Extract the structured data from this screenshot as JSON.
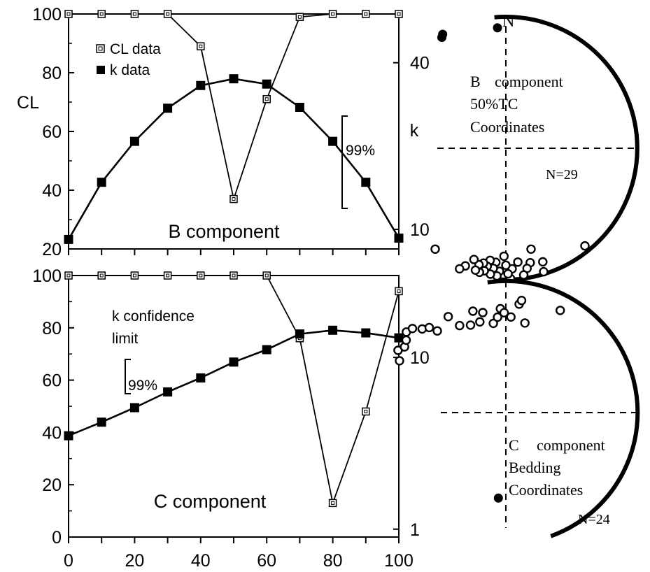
{
  "chart_data": [
    {
      "type": "line",
      "title": "B component",
      "ylabel": "CL",
      "y2label": "k",
      "x": [
        0,
        10,
        20,
        30,
        40,
        50,
        60,
        70,
        80,
        90,
        100
      ],
      "xlim": [
        0,
        100
      ],
      "ylim": [
        20,
        100
      ],
      "y2lim": [
        8.5,
        60
      ],
      "y2scale": "log",
      "yticks": [
        "20",
        "40",
        "60",
        "80",
        "100"
      ],
      "y2ticks": [
        {
          "value": 10,
          "label": "10"
        },
        {
          "value": 40,
          "label": "40"
        }
      ],
      "legend": [
        "CL data",
        "k data"
      ],
      "legend_position": "top-left",
      "bracket_label": "99%",
      "series": [
        {
          "name": "CL data",
          "axis": "left",
          "marker": "open-square",
          "values": [
            100,
            100,
            100,
            100,
            89,
            37,
            71,
            99,
            100,
            100,
            100
          ]
        },
        {
          "name": "k data",
          "axis": "right",
          "marker": "filled-square",
          "values": [
            9.2,
            14.8,
            20.8,
            27.4,
            33.1,
            35.0,
            33.5,
            27.6,
            20.8,
            14.8,
            9.3
          ]
        }
      ]
    },
    {
      "type": "line",
      "title": "C component",
      "x": [
        0,
        10,
        20,
        30,
        40,
        50,
        60,
        70,
        80,
        90,
        100
      ],
      "xlim": [
        0,
        100
      ],
      "ylim": [
        0,
        100
      ],
      "y2lim": [
        0.9,
        30
      ],
      "y2scale": "log",
      "xticks": [
        "0",
        "20",
        "40",
        "60",
        "80",
        "100"
      ],
      "yticks": [
        "0",
        "20",
        "40",
        "60",
        "80",
        "100"
      ],
      "y2ticks": [
        {
          "value": 1,
          "label": "1"
        },
        {
          "value": 10,
          "label": "10"
        }
      ],
      "annotation": [
        "k confidence",
        "limit"
      ],
      "bracket_label": "99%",
      "series": [
        {
          "name": "CL data",
          "axis": "left",
          "marker": "open-square",
          "values": [
            100,
            100,
            100,
            100,
            100,
            100,
            100,
            76,
            13,
            48,
            94
          ]
        },
        {
          "name": "k data",
          "axis": "right",
          "marker": "filled-square",
          "values": [
            3.5,
            4.2,
            5.1,
            6.3,
            7.6,
            9.4,
            11.1,
            13.7,
            14.4,
            13.9,
            13.0
          ]
        }
      ]
    },
    {
      "type": "scatter",
      "subtype": "stereonet",
      "north_label": "N",
      "title": [
        "B",
        "component",
        "50%TC",
        "Coordinates"
      ],
      "n_label": "N=29",
      "note": "direction values as [declination deg, inclination deg]; filled = lower hemisphere, open = upper hemisphere",
      "filled": [
        [
          -30,
          3
        ],
        [
          -29,
          1
        ],
        [
          -4,
          9
        ]
      ],
      "open": [
        [
          141,
          5
        ],
        [
          162,
          10
        ],
        [
          163,
          2
        ],
        [
          166,
          22
        ],
        [
          168,
          12
        ],
        [
          170,
          8
        ],
        [
          172,
          3
        ],
        [
          174,
          14
        ],
        [
          177,
          9
        ],
        [
          178,
          1
        ],
        [
          179,
          5
        ],
        [
          180,
          12
        ],
        [
          181,
          19
        ],
        [
          183,
          7
        ],
        [
          184,
          3
        ],
        [
          185,
          14
        ],
        [
          186,
          9
        ],
        [
          187,
          4
        ],
        [
          188,
          15
        ],
        [
          189,
          10
        ],
        [
          190,
          6
        ],
        [
          191,
          12
        ],
        [
          192,
          4
        ],
        [
          193,
          10
        ],
        [
          194,
          5
        ],
        [
          196,
          13
        ],
        [
          199,
          6
        ],
        [
          201,
          2
        ],
        [
          215,
          7
        ]
      ]
    },
    {
      "type": "scatter",
      "subtype": "stereonet",
      "title": [
        "C",
        "component",
        "Bedding",
        "Coordinates"
      ],
      "n_label": "N=24",
      "note": "direction values as [declination deg, inclination deg]; filled = lower hemisphere, open = upper hemisphere",
      "filled": [
        [
          185,
          35
        ]
      ],
      "open": [
        [
          296,
          11
        ],
        [
          300,
          6
        ],
        [
          303,
          9
        ],
        [
          306,
          7
        ],
        [
          309,
          3
        ],
        [
          312,
          5
        ],
        [
          315,
          11
        ],
        [
          318,
          14
        ],
        [
          320,
          20
        ],
        [
          329,
          16
        ],
        [
          332,
          26
        ],
        [
          338,
          29
        ],
        [
          342,
          20
        ],
        [
          344,
          29
        ],
        [
          347,
          23
        ],
        [
          352,
          32
        ],
        [
          355,
          28
        ],
        [
          357,
          22
        ],
        [
          359,
          25
        ],
        [
          3,
          28
        ],
        [
          7,
          18
        ],
        [
          8,
          15
        ],
        [
          12,
          31
        ],
        [
          28,
          13
        ]
      ]
    }
  ]
}
